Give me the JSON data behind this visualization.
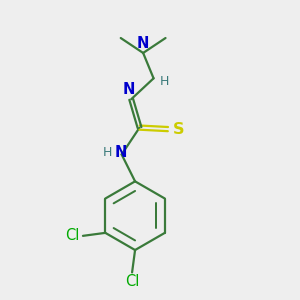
{
  "bg_color": "#eeeeee",
  "atom_colors": {
    "C": "#3a7a3a",
    "N": "#0000cc",
    "S": "#cccc00",
    "Cl": "#00aa00",
    "H": "#3a7a7a"
  },
  "bond_color": "#3a7a3a",
  "title": "",
  "figsize": [
    3.0,
    3.0
  ],
  "dpi": 100
}
